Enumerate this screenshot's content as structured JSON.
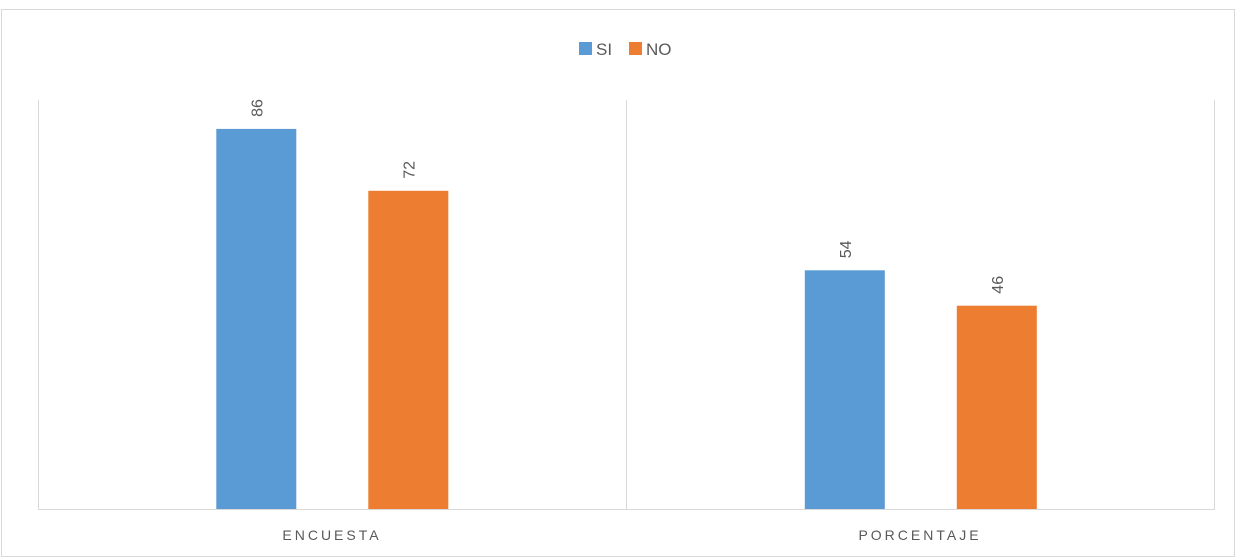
{
  "chart_data": {
    "type": "bar",
    "categories": [
      "ENCUESTA",
      "PORCENTAJE"
    ],
    "series": [
      {
        "name": "SI",
        "values": [
          86,
          54
        ],
        "color": "#5B9BD5"
      },
      {
        "name": "NO",
        "values": [
          72,
          46
        ],
        "color": "#ED7D31"
      }
    ],
    "title": "",
    "xlabel": "",
    "ylabel": "",
    "ylim": [
      0,
      100
    ],
    "grid": false,
    "legend": "top-center",
    "data_labels": true
  },
  "colors": {
    "axis": "#D9D9D9",
    "text": "#595959",
    "border": "#D9D9D9"
  }
}
